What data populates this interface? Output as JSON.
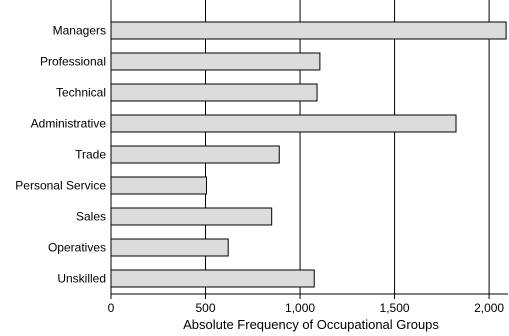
{
  "chart_data": {
    "type": "bar",
    "orientation": "horizontal",
    "categories": [
      "Managers",
      "Professional",
      "Technical",
      "Administrative",
      "Trade",
      "Personal Service",
      "Sales",
      "Operatives",
      "Unskilled"
    ],
    "values": [
      2090,
      1105,
      1090,
      1825,
      890,
      505,
      850,
      620,
      1075
    ],
    "xlabel": "Absolute Frequency of Occupational Groups",
    "ylabel": "",
    "xlim": [
      0,
      2100
    ],
    "xticks": [
      0,
      500,
      1000,
      1500,
      2000
    ],
    "xtick_labels": [
      "0",
      "500",
      "1,000",
      "1,500",
      "2,000"
    ],
    "grid": "vertical",
    "bar_color": "#dcdcdc",
    "bar_edge_color": "#000000"
  }
}
